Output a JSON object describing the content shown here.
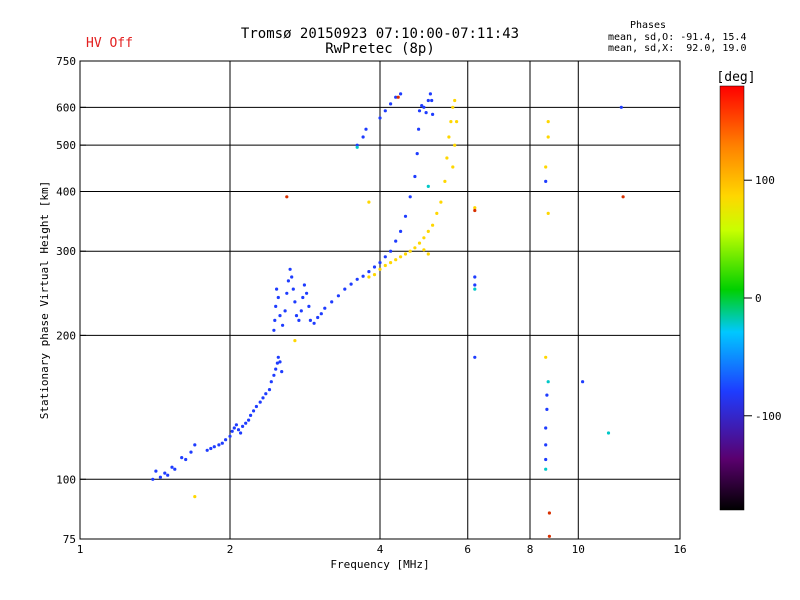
{
  "header": {
    "status": "HV Off",
    "title_line1": "Tromsø 20150923 07:10:00-07:11:43",
    "title_line2": "RwPretec (8p)",
    "stats_title": "Phases",
    "stats_o": "mean, sd,O: -91.4, 15.4",
    "stats_x": "mean, sd,X:  92.0, 19.0"
  },
  "colors": {
    "status_text": "#e32020",
    "o_mode": "#1e3cff",
    "x_mode": "#ffd700"
  },
  "colorbar": {
    "label": "[deg]",
    "ticks": [
      "100",
      "0",
      "-100"
    ],
    "tick_values": [
      100,
      0,
      -100
    ],
    "range": [
      -180,
      180
    ]
  },
  "chart_data": {
    "type": "scatter",
    "xlabel": "Frequency [MHz]",
    "ylabel": "Stationary phase Virtual Height [km]",
    "xscale": "log",
    "yscale": "log",
    "xlim": [
      1,
      16
    ],
    "ylim": [
      75,
      750
    ],
    "grid": true,
    "x_tick_labels": [
      "1",
      "2",
      "4",
      "6",
      "8",
      "10",
      "16"
    ],
    "x_tick_values": [
      1,
      2,
      4,
      6,
      8,
      10,
      16
    ],
    "y_tick_labels": [
      "75",
      "100",
      "200",
      "300",
      "400",
      "500",
      "600",
      "750"
    ],
    "y_tick_values": [
      75,
      100,
      200,
      300,
      400,
      500,
      600,
      750
    ],
    "series": [
      {
        "color": "#1e3cff",
        "points": [
          [
            1.4,
            100
          ],
          [
            1.42,
            104
          ],
          [
            1.45,
            101
          ],
          [
            1.48,
            103
          ],
          [
            1.5,
            102
          ],
          [
            1.53,
            106
          ],
          [
            1.55,
            105
          ],
          [
            1.6,
            111
          ],
          [
            1.63,
            110
          ],
          [
            1.67,
            114
          ],
          [
            1.7,
            118
          ],
          [
            1.8,
            115
          ],
          [
            1.83,
            116
          ],
          [
            1.86,
            117
          ],
          [
            1.9,
            118
          ],
          [
            1.93,
            119
          ],
          [
            1.96,
            121
          ],
          [
            2.0,
            123
          ],
          [
            2.02,
            126
          ],
          [
            2.04,
            128
          ],
          [
            2.06,
            130
          ],
          [
            2.08,
            127
          ],
          [
            2.1,
            125
          ],
          [
            2.12,
            129
          ],
          [
            2.15,
            131
          ],
          [
            2.18,
            133
          ],
          [
            2.2,
            136
          ],
          [
            2.23,
            139
          ],
          [
            2.26,
            142
          ],
          [
            2.3,
            145
          ],
          [
            2.33,
            148
          ],
          [
            2.36,
            151
          ],
          [
            2.4,
            154
          ],
          [
            2.42,
            160
          ],
          [
            2.45,
            165
          ],
          [
            2.47,
            170
          ],
          [
            2.49,
            175
          ],
          [
            2.5,
            180
          ],
          [
            2.52,
            176
          ],
          [
            2.54,
            168
          ],
          [
            2.45,
            205
          ],
          [
            2.46,
            215
          ],
          [
            2.47,
            230
          ],
          [
            2.48,
            250
          ],
          [
            2.5,
            240
          ],
          [
            2.52,
            220
          ],
          [
            2.55,
            210
          ],
          [
            2.58,
            225
          ],
          [
            2.6,
            245
          ],
          [
            2.62,
            260
          ],
          [
            2.64,
            275
          ],
          [
            2.66,
            265
          ],
          [
            2.68,
            250
          ],
          [
            2.7,
            235
          ],
          [
            2.72,
            220
          ],
          [
            2.75,
            215
          ],
          [
            2.78,
            225
          ],
          [
            2.8,
            240
          ],
          [
            2.82,
            255
          ],
          [
            2.85,
            245
          ],
          [
            2.88,
            230
          ],
          [
            2.9,
            215
          ],
          [
            2.95,
            212
          ],
          [
            3.0,
            218
          ],
          [
            3.05,
            222
          ],
          [
            3.1,
            228
          ],
          [
            3.2,
            235
          ],
          [
            3.3,
            242
          ],
          [
            3.4,
            250
          ],
          [
            3.5,
            256
          ],
          [
            3.6,
            262
          ],
          [
            3.7,
            266
          ],
          [
            3.8,
            272
          ],
          [
            3.9,
            278
          ],
          [
            4.0,
            284
          ],
          [
            4.1,
            292
          ],
          [
            4.2,
            300
          ],
          [
            4.3,
            315
          ],
          [
            4.4,
            330
          ],
          [
            4.5,
            355
          ],
          [
            4.6,
            390
          ],
          [
            4.7,
            430
          ],
          [
            4.75,
            480
          ],
          [
            4.78,
            540
          ],
          [
            4.8,
            590
          ],
          [
            4.85,
            605
          ],
          [
            4.9,
            600
          ],
          [
            4.95,
            585
          ],
          [
            5.0,
            620
          ],
          [
            5.05,
            640
          ],
          [
            5.08,
            620
          ],
          [
            5.1,
            580
          ],
          [
            3.6,
            500
          ],
          [
            3.7,
            520
          ],
          [
            3.75,
            540
          ],
          [
            4.0,
            570
          ],
          [
            4.1,
            590
          ],
          [
            4.2,
            610
          ],
          [
            4.3,
            630
          ],
          [
            4.4,
            640
          ],
          [
            6.2,
            265
          ],
          [
            6.2,
            255
          ],
          [
            6.2,
            180
          ],
          [
            10.2,
            160
          ],
          [
            12.2,
            600
          ],
          [
            8.6,
            110
          ],
          [
            8.6,
            118
          ],
          [
            8.6,
            128
          ],
          [
            8.65,
            140
          ],
          [
            8.65,
            150
          ],
          [
            8.6,
            420
          ]
        ]
      },
      {
        "color": "#ffd700",
        "points": [
          [
            3.8,
            265
          ],
          [
            3.9,
            268
          ],
          [
            4.0,
            275
          ],
          [
            4.1,
            280
          ],
          [
            4.2,
            284
          ],
          [
            4.3,
            288
          ],
          [
            4.4,
            292
          ],
          [
            4.5,
            296
          ],
          [
            4.6,
            300
          ],
          [
            4.7,
            305
          ],
          [
            4.8,
            312
          ],
          [
            4.9,
            320
          ],
          [
            5.0,
            330
          ],
          [
            5.1,
            340
          ],
          [
            5.2,
            360
          ],
          [
            5.3,
            380
          ],
          [
            5.4,
            420
          ],
          [
            5.45,
            470
          ],
          [
            5.5,
            520
          ],
          [
            5.55,
            560
          ],
          [
            5.6,
            600
          ],
          [
            5.65,
            620
          ],
          [
            5.7,
            560
          ],
          [
            5.65,
            500
          ],
          [
            5.6,
            450
          ],
          [
            4.9,
            302
          ],
          [
            5.0,
            296
          ],
          [
            1.7,
            92
          ],
          [
            2.7,
            195
          ],
          [
            3.8,
            380
          ],
          [
            6.2,
            370
          ],
          [
            8.6,
            180
          ],
          [
            8.7,
            360
          ],
          [
            8.7,
            520
          ],
          [
            8.7,
            560
          ],
          [
            8.6,
            450
          ]
        ]
      },
      {
        "color": "#d83000",
        "points": [
          [
            8.75,
            85
          ],
          [
            8.75,
            76
          ],
          [
            12.3,
            390
          ],
          [
            2.6,
            390
          ],
          [
            4.35,
            630
          ],
          [
            6.2,
            365
          ]
        ]
      },
      {
        "color": "#00c8c8",
        "points": [
          [
            3.6,
            495
          ],
          [
            5.0,
            410
          ],
          [
            6.2,
            250
          ],
          [
            8.6,
            105
          ],
          [
            11.5,
            125
          ],
          [
            8.7,
            160
          ]
        ]
      }
    ]
  }
}
